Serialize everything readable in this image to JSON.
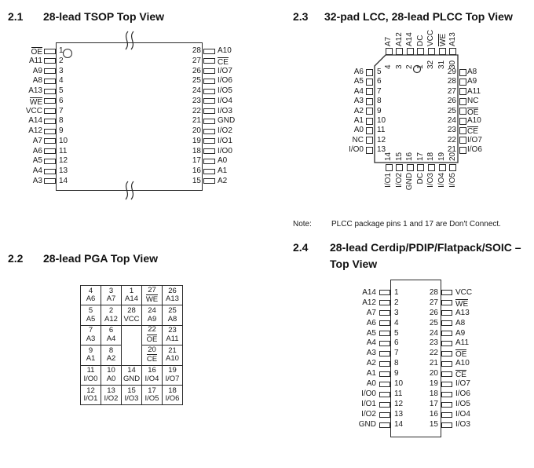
{
  "colors": {
    "ink": "#1a1a1a",
    "line": "#2b2b2b",
    "background": "#ffffff"
  },
  "sections": {
    "tsop": {
      "number": "2.1",
      "title": "28-lead TSOP Top View",
      "left_pins": [
        {
          "num": "1",
          "label": "OE",
          "bar": true
        },
        {
          "num": "2",
          "label": "A11"
        },
        {
          "num": "3",
          "label": "A9"
        },
        {
          "num": "4",
          "label": "A8"
        },
        {
          "num": "5",
          "label": "A13"
        },
        {
          "num": "6",
          "label": "WE",
          "bar": true
        },
        {
          "num": "7",
          "label": "VCC"
        },
        {
          "num": "8",
          "label": "A14"
        },
        {
          "num": "9",
          "label": "A12"
        },
        {
          "num": "10",
          "label": "A7"
        },
        {
          "num": "11",
          "label": "A6"
        },
        {
          "num": "12",
          "label": "A5"
        },
        {
          "num": "13",
          "label": "A4"
        },
        {
          "num": "14",
          "label": "A3"
        }
      ],
      "right_pins": [
        {
          "num": "28",
          "label": "A10"
        },
        {
          "num": "27",
          "label": "CE",
          "bar": true
        },
        {
          "num": "26",
          "label": "I/O7"
        },
        {
          "num": "25",
          "label": "I/O6"
        },
        {
          "num": "24",
          "label": "I/O5"
        },
        {
          "num": "23",
          "label": "I/O4"
        },
        {
          "num": "22",
          "label": "I/O3"
        },
        {
          "num": "21",
          "label": "GND"
        },
        {
          "num": "20",
          "label": "I/O2"
        },
        {
          "num": "19",
          "label": "I/O1"
        },
        {
          "num": "18",
          "label": "I/O0"
        },
        {
          "num": "17",
          "label": "A0"
        },
        {
          "num": "16",
          "label": "A1"
        },
        {
          "num": "15",
          "label": "A2"
        }
      ]
    },
    "pga": {
      "number": "2.2",
      "title": "28-lead PGA Top View",
      "rows": [
        [
          {
            "num": "4",
            "label": "A6"
          },
          {
            "num": "3",
            "label": "A7"
          },
          {
            "num": "1",
            "label": "A14"
          },
          {
            "num": "27",
            "label": "WE",
            "bar": true
          },
          {
            "num": "26",
            "label": "A13"
          }
        ],
        [
          {
            "num": "5",
            "label": "A5"
          },
          {
            "num": "2",
            "label": "A12"
          },
          {
            "num": "28",
            "label": "VCC"
          },
          {
            "num": "24",
            "label": "A9"
          },
          {
            "num": "25",
            "label": "A8"
          }
        ],
        [
          {
            "num": "7",
            "label": "A3"
          },
          {
            "num": "6",
            "label": "A4"
          },
          null,
          {
            "num": "22",
            "label": "OE",
            "bar": true
          },
          {
            "num": "23",
            "label": "A11"
          }
        ],
        [
          {
            "num": "9",
            "label": "A1"
          },
          {
            "num": "8",
            "label": "A2"
          },
          null,
          {
            "num": "20",
            "label": "CE",
            "bar": true
          },
          {
            "num": "21",
            "label": "A10"
          }
        ],
        [
          {
            "num": "11",
            "label": "I/O0"
          },
          {
            "num": "10",
            "label": "A0"
          },
          {
            "num": "14",
            "label": "GND"
          },
          {
            "num": "16",
            "label": "I/O4"
          },
          {
            "num": "19",
            "label": "I/O7"
          }
        ],
        [
          {
            "num": "12",
            "label": "I/O1"
          },
          {
            "num": "13",
            "label": "I/O2"
          },
          {
            "num": "15",
            "label": "I/O3"
          },
          {
            "num": "17",
            "label": "I/O5"
          },
          {
            "num": "18",
            "label": "I/O6"
          }
        ]
      ]
    },
    "lcc": {
      "number": "2.3",
      "title": "32-pad LCC, 28-lead PLCC Top View",
      "top_pins": [
        {
          "num": "4",
          "label": "A7"
        },
        {
          "num": "3",
          "label": "A12"
        },
        {
          "num": "2",
          "label": "A14"
        },
        {
          "num": "1",
          "label": "DC"
        },
        {
          "num": "32",
          "label": "VCC"
        },
        {
          "num": "31",
          "label": "WE",
          "bar": true
        },
        {
          "num": "30",
          "label": "A13"
        }
      ],
      "left_pins": [
        {
          "num": "5",
          "label": "A6"
        },
        {
          "num": "6",
          "label": "A5"
        },
        {
          "num": "7",
          "label": "A4"
        },
        {
          "num": "8",
          "label": "A3"
        },
        {
          "num": "9",
          "label": "A2"
        },
        {
          "num": "10",
          "label": "A1"
        },
        {
          "num": "11",
          "label": "A0"
        },
        {
          "num": "12",
          "label": "NC"
        },
        {
          "num": "13",
          "label": "I/O0"
        }
      ],
      "right_pins": [
        {
          "num": "29",
          "label": "A8"
        },
        {
          "num": "28",
          "label": "A9"
        },
        {
          "num": "27",
          "label": "A11"
        },
        {
          "num": "26",
          "label": "NC"
        },
        {
          "num": "25",
          "label": "OE",
          "bar": true
        },
        {
          "num": "24",
          "label": "A10"
        },
        {
          "num": "23",
          "label": "CE",
          "bar": true
        },
        {
          "num": "22",
          "label": "I/O7"
        },
        {
          "num": "21",
          "label": "I/O6"
        }
      ],
      "bottom_pins": [
        {
          "num": "14",
          "label": "I/O1"
        },
        {
          "num": "15",
          "label": "I/O2"
        },
        {
          "num": "16",
          "label": "GND"
        },
        {
          "num": "17",
          "label": "DC"
        },
        {
          "num": "18",
          "label": "I/O3"
        },
        {
          "num": "19",
          "label": "I/O4"
        },
        {
          "num": "20",
          "label": "I/O5"
        }
      ]
    },
    "note": {
      "label": "Note:",
      "text": "PLCC package pins 1 and 17 are Don't Connect."
    },
    "dip": {
      "number": "2.4",
      "title_line1": "28-lead Cerdip/PDIP/Flatpack/SOIC –",
      "title_line2": "Top View",
      "left_pins": [
        {
          "num": "1",
          "label": "A14"
        },
        {
          "num": "2",
          "label": "A12"
        },
        {
          "num": "3",
          "label": "A7"
        },
        {
          "num": "4",
          "label": "A6"
        },
        {
          "num": "5",
          "label": "A5"
        },
        {
          "num": "6",
          "label": "A4"
        },
        {
          "num": "7",
          "label": "A3"
        },
        {
          "num": "8",
          "label": "A2"
        },
        {
          "num": "9",
          "label": "A1"
        },
        {
          "num": "10",
          "label": "A0"
        },
        {
          "num": "11",
          "label": "I/O0"
        },
        {
          "num": "12",
          "label": "I/O1"
        },
        {
          "num": "13",
          "label": "I/O2"
        },
        {
          "num": "14",
          "label": "GND"
        }
      ],
      "right_pins": [
        {
          "num": "28",
          "label": "VCC"
        },
        {
          "num": "27",
          "label": "WE",
          "bar": true
        },
        {
          "num": "26",
          "label": "A13"
        },
        {
          "num": "25",
          "label": "A8"
        },
        {
          "num": "24",
          "label": "A9"
        },
        {
          "num": "23",
          "label": "A11"
        },
        {
          "num": "22",
          "label": "OE",
          "bar": true
        },
        {
          "num": "21",
          "label": "A10"
        },
        {
          "num": "20",
          "label": "CE",
          "bar": true
        },
        {
          "num": "19",
          "label": "I/O7"
        },
        {
          "num": "18",
          "label": "I/O6"
        },
        {
          "num": "17",
          "label": "I/O5"
        },
        {
          "num": "16",
          "label": "I/O4"
        },
        {
          "num": "15",
          "label": "I/O3"
        }
      ]
    }
  }
}
